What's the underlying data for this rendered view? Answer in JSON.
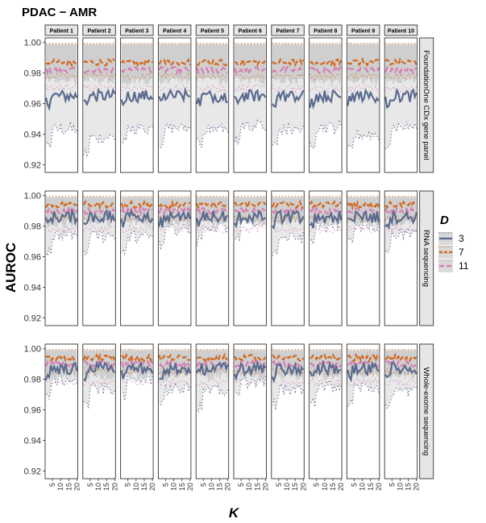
{
  "chart_data": {
    "type": "line",
    "title": "PDAC − AMR",
    "xlabel": "K",
    "ylabel": "AUROC",
    "xlim": [
      1,
      20
    ],
    "ylim": [
      0.915,
      1.003
    ],
    "x_ticks": [
      "5",
      "10",
      "15",
      "20"
    ],
    "y_ticks": [
      "0.92",
      "0.94",
      "0.96",
      "0.98",
      "1.00"
    ],
    "columns": [
      "Patient 1",
      "Patient 2",
      "Patient 3",
      "Patient 4",
      "Patient 5",
      "Patient 6",
      "Patient 7",
      "Patient 8",
      "Patient 9",
      "Patient 10"
    ],
    "rows": [
      "FoundationOne CDx gene panel",
      "RNA sequencing",
      "Whole-exome sequencing"
    ],
    "legend": {
      "title": "D",
      "position": "right",
      "entries": [
        {
          "label": "3",
          "color": "#5b6b8f",
          "dash": "long"
        },
        {
          "label": "7",
          "color": "#d2691e",
          "dash": "dashed"
        },
        {
          "label": "11",
          "color": "#d77fb3",
          "dash": "long-dash"
        }
      ]
    },
    "band_colors": {
      "outer": "#e8e8e8",
      "inner": "#cfcfcf"
    },
    "series_means": {
      "FoundationOne CDx gene panel": {
        "3": 0.965,
        "7": 0.987,
        "11": 0.982,
        "lower_bound_3": 0.94
      },
      "RNA sequencing": {
        "3": 0.986,
        "7": 0.994,
        "11": 0.99,
        "lower_bound_3": 0.975
      },
      "Whole-exome sequencing": {
        "3": 0.987,
        "7": 0.994,
        "11": 0.99,
        "lower_bound_3": 0.975
      }
    }
  },
  "colors": {
    "d3": "#5b6b8f",
    "d7": "#d2691e",
    "d11": "#d77fb3",
    "panel_border": "#333333",
    "strip_fill": "#e6e6e6"
  }
}
